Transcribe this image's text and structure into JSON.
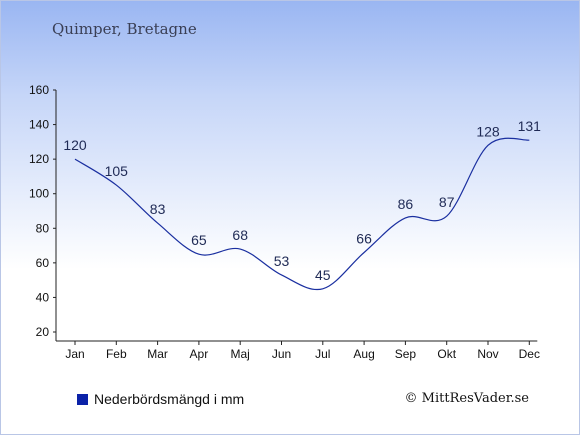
{
  "location_title": "Quimper, Bretagne",
  "legend_label": "Nederbördsmängd i mm",
  "copyright": "© MittResVader.se",
  "colors": {
    "line": "#1a2fa0",
    "swatch": "#0b22a8",
    "axis": "#222222"
  },
  "chart_data": {
    "type": "line",
    "categories": [
      "Jan",
      "Feb",
      "Mar",
      "Apr",
      "Maj",
      "Jun",
      "Jul",
      "Aug",
      "Sep",
      "Okt",
      "Nov",
      "Dec"
    ],
    "series": [
      {
        "name": "Nederbördsmängd i mm",
        "values": [
          120,
          105,
          83,
          65,
          68,
          53,
          45,
          66,
          86,
          87,
          128,
          131
        ]
      }
    ],
    "ylim": [
      20,
      160
    ],
    "yticks": [
      20,
      40,
      60,
      80,
      100,
      120,
      140,
      160
    ],
    "grid": false,
    "legend_position": "bottom-left"
  }
}
